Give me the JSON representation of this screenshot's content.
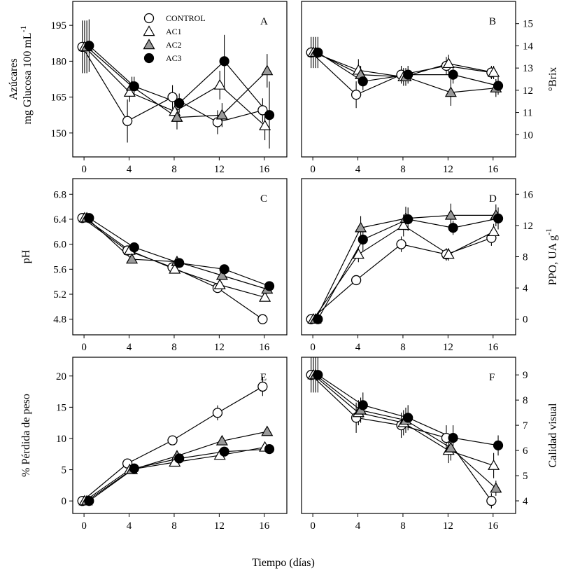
{
  "figure": {
    "xlabel": "Tiempo (días)"
  },
  "legend": {
    "items": [
      {
        "label": "CONTROL",
        "marker": "circle-open"
      },
      {
        "label": "AC1",
        "marker": "triangle-open"
      },
      {
        "label": "AC2",
        "marker": "triangle-gray"
      },
      {
        "label": "AC3",
        "marker": "circle-filled"
      }
    ]
  },
  "colors": {
    "gray": "#9a9a9a",
    "black": "#000000",
    "white": "#ffffff"
  },
  "chart_data": [
    {
      "panel": "A",
      "type": "line",
      "title": "A",
      "ylabel_lines": [
        "Azúcares",
        "mg Glucosa 100 mL"
      ],
      "ylabel_sup": "-1",
      "yaxis_side": "left",
      "ylim": [
        140,
        205
      ],
      "yticks": [
        150,
        165,
        180,
        195
      ],
      "xlim": [
        -1,
        18
      ],
      "xticks": [
        0,
        4,
        8,
        12,
        16
      ],
      "x": [
        0,
        4,
        8,
        12,
        16
      ],
      "series": [
        {
          "name": "CONTROL",
          "values": [
            186,
            155,
            165,
            154.5,
            159.5
          ],
          "err": [
            11,
            9,
            5,
            5,
            5
          ]
        },
        {
          "name": "AC1",
          "values": [
            186,
            167,
            159,
            170,
            153
          ],
          "err": [
            11,
            4,
            4,
            6,
            6
          ]
        },
        {
          "name": "AC2",
          "values": [
            186,
            169.5,
            156.5,
            157.5,
            176
          ],
          "err": [
            11,
            4,
            5,
            5,
            7
          ]
        },
        {
          "name": "AC3",
          "values": [
            186.5,
            169.5,
            162.5,
            180,
            157.5
          ],
          "err": [
            11,
            4,
            4,
            11,
            14
          ]
        }
      ]
    },
    {
      "panel": "B",
      "type": "line",
      "title": "B",
      "ylabel_lines": [
        "°Brix"
      ],
      "ylabel_sup": "",
      "yaxis_side": "right",
      "ylim": [
        9,
        16
      ],
      "yticks": [
        10,
        11,
        12,
        13,
        14,
        15
      ],
      "xlim": [
        -1,
        18
      ],
      "xticks": [
        0,
        4,
        8,
        12,
        16
      ],
      "x": [
        0,
        4,
        8,
        12,
        16
      ],
      "series": [
        {
          "name": "CONTROL",
          "values": [
            13.7,
            11.8,
            12.7,
            13.1,
            12.8
          ],
          "err": [
            0.7,
            0.6,
            0.4,
            0.4,
            0.3
          ]
        },
        {
          "name": "AC1",
          "values": [
            13.7,
            12.9,
            12.6,
            13.2,
            12.8
          ],
          "err": [
            0.7,
            0.5,
            0.4,
            0.4,
            0.3
          ]
        },
        {
          "name": "AC2",
          "values": [
            13.7,
            12.7,
            12.6,
            11.9,
            12.1
          ],
          "err": [
            0.7,
            0.4,
            0.4,
            0.6,
            0.4
          ]
        },
        {
          "name": "AC3",
          "values": [
            13.7,
            12.4,
            12.7,
            12.7,
            12.2
          ],
          "err": [
            0.7,
            0.4,
            0.4,
            0.4,
            0.4
          ]
        }
      ]
    },
    {
      "panel": "C",
      "type": "line",
      "title": "C",
      "ylabel_lines": [
        "pH"
      ],
      "ylabel_sup": "",
      "yaxis_side": "left",
      "ylim": [
        4.55,
        7.05
      ],
      "yticks": [
        4.8,
        5.2,
        5.6,
        6.0,
        6.4,
        6.8
      ],
      "ytick_labels": [
        "4.8",
        "5.2",
        "5.6",
        "6.0",
        "6.4",
        "6.8"
      ],
      "xlim": [
        -1,
        18
      ],
      "xticks": [
        0,
        4,
        8,
        12,
        16
      ],
      "x": [
        0,
        4,
        8,
        12,
        16
      ],
      "series": [
        {
          "name": "CONTROL",
          "values": [
            6.42,
            5.9,
            5.63,
            5.3,
            4.8
          ],
          "err": [
            0,
            0,
            0,
            0,
            0
          ]
        },
        {
          "name": "AC1",
          "values": [
            6.42,
            5.9,
            5.6,
            5.35,
            5.15
          ],
          "err": [
            0,
            0,
            0,
            0,
            0
          ]
        },
        {
          "name": "AC2",
          "values": [
            6.42,
            5.76,
            5.72,
            5.5,
            5.28
          ],
          "err": [
            0,
            0,
            0,
            0,
            0
          ]
        },
        {
          "name": "AC3",
          "values": [
            6.42,
            5.95,
            5.7,
            5.6,
            5.33
          ],
          "err": [
            0,
            0,
            0,
            0,
            0
          ]
        }
      ]
    },
    {
      "panel": "D",
      "type": "line",
      "title": "D",
      "ylabel_lines": [
        "PPO, UA g"
      ],
      "ylabel_sup": "-1",
      "yaxis_side": "right",
      "ylim": [
        -2,
        18
      ],
      "yticks": [
        0,
        4,
        8,
        12,
        16
      ],
      "xlim": [
        -1,
        18
      ],
      "xticks": [
        0,
        4,
        8,
        12,
        16
      ],
      "x": [
        0,
        4,
        8,
        12,
        16
      ],
      "series": [
        {
          "name": "CONTROL",
          "values": [
            0,
            5,
            9.6,
            8.3,
            10.4
          ],
          "err": [
            0,
            0,
            1,
            0.8,
            1
          ]
        },
        {
          "name": "AC1",
          "values": [
            0,
            8.3,
            12,
            8.3,
            11.2
          ],
          "err": [
            0,
            1,
            1.4,
            0.8,
            1
          ]
        },
        {
          "name": "AC2",
          "values": [
            0,
            11.7,
            12.9,
            13.3,
            13.3
          ],
          "err": [
            0,
            1.5,
            1.5,
            1.5,
            1.4
          ]
        },
        {
          "name": "AC3",
          "values": [
            0,
            10.2,
            12.8,
            11.7,
            12.9
          ],
          "err": [
            0,
            1.5,
            1.5,
            0.9,
            1.4
          ]
        }
      ]
    },
    {
      "panel": "E",
      "type": "line",
      "title": "E",
      "ylabel_lines": [
        "% Pérdida de peso"
      ],
      "ylabel_sup": "",
      "yaxis_side": "left",
      "ylim": [
        -2,
        23
      ],
      "yticks": [
        0,
        5,
        10,
        15,
        20
      ],
      "xlim": [
        -1,
        18
      ],
      "xticks": [
        0,
        4,
        8,
        12,
        16
      ],
      "x": [
        0,
        4,
        8,
        12,
        16
      ],
      "series": [
        {
          "name": "CONTROL",
          "values": [
            0,
            6,
            9.7,
            14.1,
            18.3
          ],
          "err": [
            0,
            0,
            0,
            1.2,
            1.5
          ]
        },
        {
          "name": "AC1",
          "values": [
            0,
            5,
            6.2,
            7.3,
            8.6
          ],
          "err": [
            0,
            0,
            0,
            0,
            0
          ]
        },
        {
          "name": "AC2",
          "values": [
            0,
            5,
            7.2,
            9.6,
            11.1
          ],
          "err": [
            0,
            0,
            0,
            0,
            0
          ]
        },
        {
          "name": "AC3",
          "values": [
            0,
            5.2,
            6.8,
            7.9,
            8.3
          ],
          "err": [
            0,
            0,
            0,
            0,
            0
          ]
        }
      ]
    },
    {
      "panel": "F",
      "type": "line",
      "title": "F",
      "ylabel_lines": [
        "Calidad visual"
      ],
      "ylabel_sup": "",
      "yaxis_side": "right",
      "ylim": [
        3.5,
        9.7
      ],
      "yticks": [
        4,
        5,
        6,
        7,
        8,
        9
      ],
      "xlim": [
        -1,
        18
      ],
      "xticks": [
        0,
        4,
        8,
        12,
        16
      ],
      "x": [
        0,
        4,
        8,
        12,
        16
      ],
      "series": [
        {
          "name": "CONTROL",
          "values": [
            9,
            7.3,
            7,
            6.5,
            4
          ],
          "err": [
            0.7,
            0.6,
            0.5,
            0.5,
            0.3
          ]
        },
        {
          "name": "AC1",
          "values": [
            9,
            7.5,
            7.1,
            6,
            5.4
          ],
          "err": [
            0.7,
            0.5,
            0.5,
            0.5,
            0.5
          ]
        },
        {
          "name": "AC2",
          "values": [
            9,
            7.6,
            7.2,
            6.1,
            4.5
          ],
          "err": [
            0.7,
            0.5,
            0.5,
            0.5,
            0.3
          ]
        },
        {
          "name": "AC3",
          "values": [
            9,
            7.8,
            7.3,
            6.5,
            6.2
          ],
          "err": [
            0.7,
            0.5,
            0.5,
            0.5,
            0.4
          ]
        }
      ]
    }
  ]
}
